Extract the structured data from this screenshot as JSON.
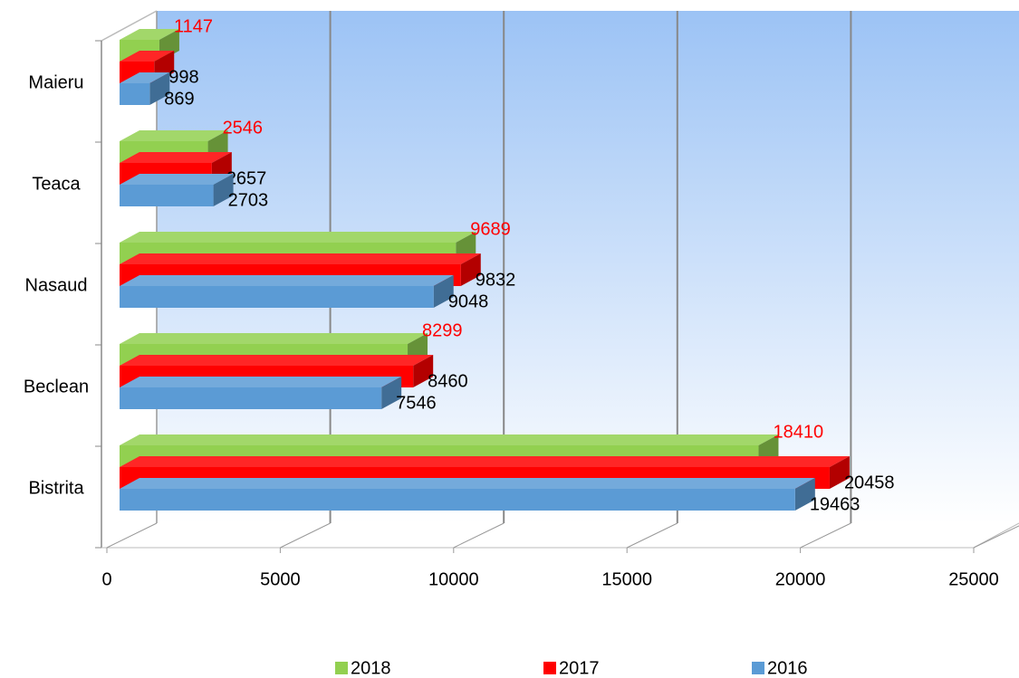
{
  "chart_data": {
    "type": "bar",
    "orientation": "horizontal",
    "three_d": true,
    "categories": [
      "Bistrita",
      "Beclean",
      "Nasaud",
      "Teaca",
      "Maieru"
    ],
    "series": [
      {
        "name": "2018",
        "color": "#92d050",
        "label_color": "#ff0000",
        "values": [
          18410,
          8299,
          9689,
          2546,
          1147
        ]
      },
      {
        "name": "2017",
        "color": "#ff0000",
        "label_color": "#000000",
        "values": [
          20458,
          8460,
          9832,
          2657,
          998
        ]
      },
      {
        "name": "2016",
        "color": "#5b9bd5",
        "label_color": "#000000",
        "values": [
          19463,
          7546,
          9048,
          2703,
          869
        ]
      }
    ],
    "xlim": [
      0,
      25000
    ],
    "xticks": [
      0,
      5000,
      10000,
      15000,
      20000,
      25000
    ],
    "grid": true,
    "legend": "bottom"
  }
}
